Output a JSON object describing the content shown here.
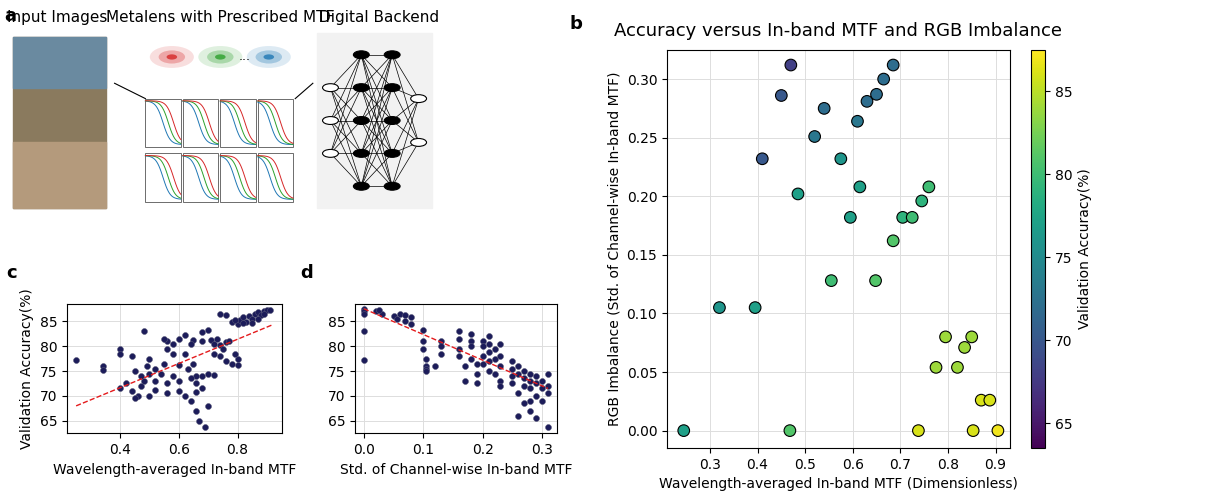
{
  "panel_a": {
    "panel_label": "a",
    "texts": {
      "input": "Input Images",
      "metalens": "Metalens with Prescribed MTF",
      "backend": "Digital Backend",
      "ellipsis": "..."
    }
  },
  "chart_data": [
    {
      "type": "scatter",
      "panel_label": "b",
      "title": "Accuracy versus In-band MTF and RGB Imbalance",
      "x_label": "Wavelength-averaged In-band MTF (Dimensionless)",
      "y_label": "RGB Imbalance (Std. of Channel-wise In-band MTF)",
      "x": [
        0.47,
        0.45,
        0.54,
        0.63,
        0.65,
        0.665,
        0.685,
        0.52,
        0.61,
        0.41,
        0.575,
        0.485,
        0.615,
        0.76,
        0.745,
        0.595,
        0.705,
        0.725,
        0.685,
        0.32,
        0.395,
        0.555,
        0.648,
        0.795,
        0.85,
        0.835,
        0.775,
        0.82,
        0.87,
        0.888,
        0.245,
        0.468,
        0.738,
        0.853,
        0.905
      ],
      "y": [
        0.312,
        0.286,
        0.275,
        0.281,
        0.287,
        0.3,
        0.312,
        0.251,
        0.264,
        0.232,
        0.232,
        0.202,
        0.208,
        0.208,
        0.196,
        0.182,
        0.182,
        0.182,
        0.162,
        0.105,
        0.105,
        0.128,
        0.128,
        0.08,
        0.08,
        0.071,
        0.054,
        0.054,
        0.026,
        0.026,
        0.0,
        0.0,
        0.0,
        0.0,
        0.0
      ],
      "accuracy": [
        68,
        70,
        72,
        72,
        72,
        72,
        72,
        73,
        73,
        70,
        76,
        77,
        77,
        80,
        79,
        77,
        79,
        80,
        81,
        76,
        77,
        80,
        81,
        84,
        84,
        84,
        84,
        84,
        86,
        86,
        77,
        81,
        86,
        86,
        87
      ],
      "colorbar": {
        "label": "Validation Accuracy(%)",
        "range": [
          63.5,
          87.5
        ],
        "ticks": [
          65,
          70,
          75,
          80,
          85
        ]
      },
      "xlim": [
        0.21,
        0.93
      ],
      "xticks": [
        0.3,
        0.4,
        0.5,
        0.6,
        0.7,
        0.8,
        0.9
      ],
      "ylim": [
        -0.015,
        0.325
      ],
      "yticks": [
        {
          "value": 0.0,
          "label": "0.00"
        },
        {
          "value": 0.05,
          "label": "0.05"
        },
        {
          "value": 0.1,
          "label": "0.10"
        },
        {
          "value": 0.15,
          "label": "0.15"
        },
        {
          "value": 0.2,
          "label": "0.20"
        },
        {
          "value": 0.25,
          "label": "0.25"
        },
        {
          "value": 0.3,
          "label": "0.30"
        }
      ],
      "grid": true
    },
    {
      "type": "scatter",
      "panel_label": "c",
      "x_label": "Wavelength-averaged In-band MTF",
      "y_label": "Validation Accuracy(%)",
      "color": "#1c1c5a",
      "x": [
        0.8,
        0.81,
        0.82,
        0.83,
        0.84,
        0.85,
        0.86,
        0.87,
        0.88,
        0.89,
        0.9,
        0.91,
        0.85,
        0.87,
        0.82,
        0.89,
        0.78,
        0.76,
        0.74,
        0.79,
        0.7,
        0.71,
        0.72,
        0.73,
        0.74,
        0.75,
        0.76,
        0.77,
        0.72,
        0.74,
        0.76,
        0.78,
        0.8,
        0.8,
        0.79,
        0.68,
        0.68,
        0.65,
        0.64,
        0.62,
        0.6,
        0.58,
        0.56,
        0.55,
        0.62,
        0.58,
        0.56,
        0.5,
        0.52,
        0.55,
        0.6,
        0.65,
        0.63,
        0.68,
        0.66,
        0.64,
        0.7,
        0.72,
        0.66,
        0.68,
        0.62,
        0.64,
        0.66,
        0.67,
        0.69,
        0.7,
        0.6,
        0.58,
        0.56,
        0.54,
        0.52,
        0.5,
        0.49,
        0.48,
        0.47,
        0.45,
        0.47,
        0.46,
        0.45,
        0.44,
        0.42,
        0.4,
        0.4,
        0.4,
        0.48,
        0.44,
        0.34,
        0.34,
        0.25,
        0.5,
        0.52,
        0.56,
        0.6,
        0.66
      ],
      "y": [
        84.5,
        85.2,
        85.8,
        84.8,
        86,
        85.4,
        86.5,
        86.8,
        86.2,
        87,
        87.3,
        87.2,
        84.6,
        85.5,
        84.7,
        86.5,
        84.9,
        86.2,
        86.5,
        85.3,
        83.3,
        81.2,
        80.5,
        81.5,
        80.2,
        79.5,
        80.8,
        81,
        78.5,
        78,
        77,
        76.5,
        77.5,
        76.2,
        78.4,
        82.8,
        81,
        81.3,
        80.5,
        82.3,
        81.5,
        80.5,
        81,
        81.5,
        78.5,
        78.5,
        79.5,
        77.5,
        75.5,
        76.5,
        76.3,
        76.5,
        75.5,
        74,
        74,
        73.5,
        74.4,
        74.2,
        72.5,
        71.5,
        70,
        69,
        67,
        65,
        63.7,
        68,
        73,
        74,
        72.5,
        74.5,
        73,
        74.5,
        76,
        73,
        74,
        75,
        72,
        70,
        69.5,
        71,
        72.5,
        71.5,
        79.5,
        78.5,
        83,
        78,
        76,
        75.2,
        77.3,
        70,
        71.2,
        70.5,
        71,
        70.8
      ],
      "fit": {
        "x": [
          0.25,
          0.92
        ],
        "y": [
          68,
          84.3
        ],
        "color": "#e41a1c",
        "line_style": "dashed"
      },
      "xlim": [
        0.22,
        0.95
      ],
      "xticks": [
        0.4,
        0.6,
        0.8
      ],
      "ylim": [
        62.5,
        88.5
      ],
      "yticks": [
        65,
        70,
        75,
        80,
        85
      ],
      "grid": true
    },
    {
      "type": "scatter",
      "panel_label": "d",
      "x_label": "Std. of Channel-wise In-band MTF",
      "color": "#1c1c5a",
      "x": [
        0,
        0,
        0,
        0,
        0,
        0.02,
        0.03,
        0.025,
        0.05,
        0.055,
        0.06,
        0.07,
        0.07,
        0.08,
        0.08,
        0.1,
        0.1,
        0.1,
        0.105,
        0.105,
        0.105,
        0.105,
        0.13,
        0.13,
        0.13,
        0.16,
        0.16,
        0.16,
        0.16,
        0.17,
        0.17,
        0.18,
        0.18,
        0.18,
        0.18,
        0.19,
        0.19,
        0.2,
        0.2,
        0.2,
        0.2,
        0.21,
        0.21,
        0.21,
        0.21,
        0.21,
        0.22,
        0.22,
        0.22,
        0.23,
        0.23,
        0.23,
        0.23,
        0.23,
        0.25,
        0.25,
        0.25,
        0.25,
        0.26,
        0.26,
        0.26,
        0.27,
        0.27,
        0.27,
        0.28,
        0.28,
        0.28,
        0.28,
        0.28,
        0.29,
        0.29,
        0.29,
        0.29,
        0.3,
        0.3,
        0.3,
        0.31,
        0.31,
        0.31,
        0.31,
        0.27,
        0.26,
        0.19,
        0.12
      ],
      "y": [
        87.5,
        87,
        86.5,
        83,
        77.3,
        87,
        86.5,
        87.2,
        86,
        85.5,
        86.5,
        86.2,
        85,
        84.5,
        85.8,
        83.3,
        81,
        79.5,
        76,
        75.5,
        77.5,
        75,
        81,
        80,
        78.5,
        83,
        81.5,
        79.5,
        78,
        76,
        73,
        82.5,
        81,
        80,
        77.5,
        76.5,
        74.5,
        81,
        80,
        78,
        76.5,
        82,
        80.5,
        78.8,
        77,
        75,
        79.5,
        77.5,
        74.5,
        80.5,
        78,
        76,
        73,
        72,
        77,
        75.5,
        74,
        72.5,
        76,
        74.5,
        70.5,
        75,
        73.5,
        72,
        74.5,
        73,
        71.5,
        69,
        67,
        74,
        72.5,
        70,
        65.5,
        73,
        71.5,
        69,
        74.5,
        72,
        70.5,
        63.7,
        68.5,
        66,
        72.5,
        76
      ],
      "fit": {
        "x": [
          0.0,
          0.31
        ],
        "y": [
          87.5,
          71.5
        ],
        "color": "#e41a1c",
        "line_style": "dashed"
      },
      "xlim": [
        -0.015,
        0.325
      ],
      "xticks": [
        {
          "value": 0.0,
          "label": "0.0"
        },
        0.1,
        0.2,
        0.3
      ],
      "ylim": [
        62.5,
        88.5
      ],
      "yticks": [
        65,
        70,
        75,
        80,
        85
      ],
      "grid": true
    }
  ]
}
